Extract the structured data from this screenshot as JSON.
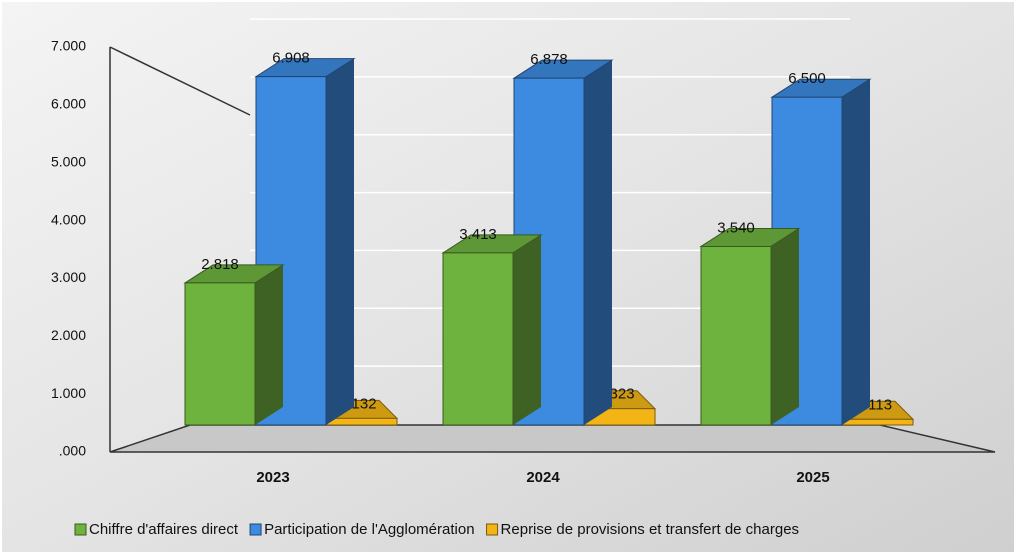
{
  "chart_data": {
    "type": "bar3d",
    "categories": [
      "2023",
      "2024",
      "2025"
    ],
    "series": [
      {
        "name": "Chiffre d'affaires direct",
        "color": "#6fb33f",
        "values": [
          2818,
          3413,
          3540
        ],
        "value_labels": [
          "2.818",
          "3.413",
          "3.540"
        ]
      },
      {
        "name": "Participation de l'Agglomération",
        "color": "#3d8be0",
        "values": [
          6908,
          6878,
          6500
        ],
        "value_labels": [
          "6.908",
          "6.878",
          "6.500"
        ]
      },
      {
        "name": "Reprise de provisions et transfert de charges",
        "color": "#f2b515",
        "values": [
          132,
          323,
          113
        ],
        "value_labels": [
          ".132",
          ".323",
          ".113"
        ]
      }
    ],
    "ylim": [
      0,
      7000
    ],
    "yticks": [
      {
        "value": 0,
        "label": ".000"
      },
      {
        "value": 1000,
        "label": "1.000"
      },
      {
        "value": 2000,
        "label": "2.000"
      },
      {
        "value": 3000,
        "label": "3.000"
      },
      {
        "value": 4000,
        "label": "4.000"
      },
      {
        "value": 5000,
        "label": "5.000"
      },
      {
        "value": 6000,
        "label": "6.000"
      },
      {
        "value": 7000,
        "label": "7.000"
      }
    ],
    "grid": true,
    "legend": "bottom"
  }
}
